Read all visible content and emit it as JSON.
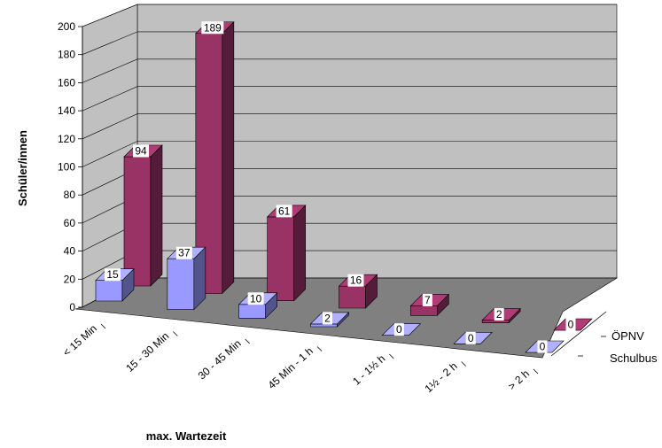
{
  "chart_data": {
    "type": "bar",
    "subtype": "3d-column-stacked-depth",
    "xlabel": "max. Wartezeit",
    "ylabel": "Schüler/innen",
    "ylim": [
      0,
      200
    ],
    "yticks": [
      0,
      20,
      40,
      60,
      80,
      100,
      120,
      140,
      160,
      180,
      200
    ],
    "grid": true,
    "categories": [
      "< 15 Min",
      "15 - 30 Min",
      "30 - 45 Min",
      "45 Min - 1 h",
      "1 - 1½ h",
      "1½ - 2 h",
      "> 2 h"
    ],
    "series": [
      {
        "name": "ÖPNV",
        "color": "#993366",
        "values": [
          94,
          189,
          61,
          16,
          7,
          2,
          0
        ]
      },
      {
        "name": "Schulbus",
        "color": "#9999ff",
        "values": [
          15,
          37,
          10,
          2,
          0,
          0,
          0
        ]
      }
    ]
  }
}
